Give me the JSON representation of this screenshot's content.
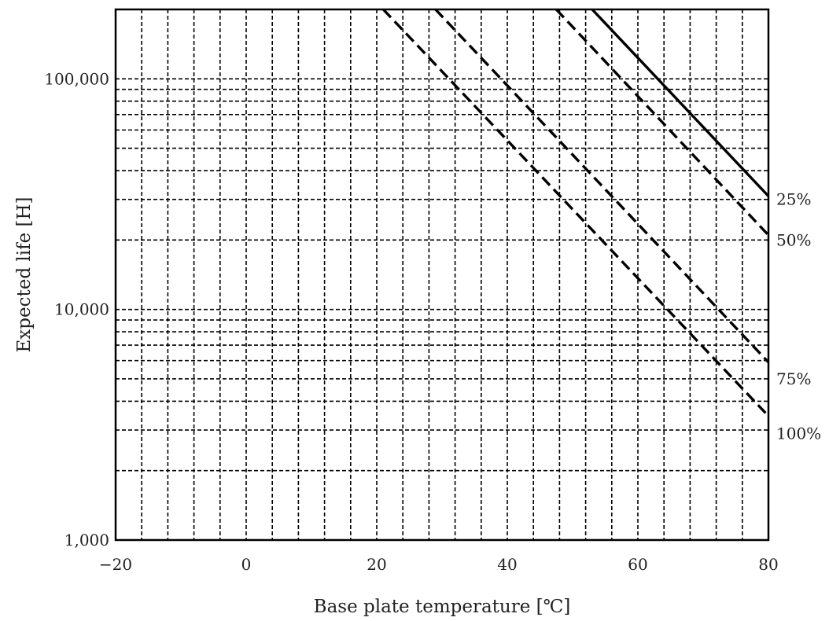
{
  "chart_data": {
    "type": "line",
    "xlabel": "Base plate temperature [℃]",
    "ylabel": "Expected life  [H]",
    "xlim": [
      -20,
      80
    ],
    "ylim": [
      1000,
      200000
    ],
    "y_scale": "log",
    "grid": true,
    "x_ticks": [
      -20,
      0,
      20,
      40,
      60,
      80
    ],
    "x_tick_labels": [
      "−20",
      "0",
      "20",
      "40",
      "60",
      "80"
    ],
    "x_minor_gridlines": [
      -16,
      -12,
      -8,
      -4,
      4,
      8,
      12,
      16,
      24,
      28,
      32,
      36,
      44,
      48,
      52,
      56,
      64,
      68,
      72,
      76
    ],
    "y_ticks": [
      1000,
      10000,
      100000
    ],
    "y_tick_labels": [
      "1,000",
      "10,000",
      "100,000"
    ],
    "y_minor_gridlines": [
      2000,
      3000,
      4000,
      5000,
      6000,
      7000,
      8000,
      9000,
      20000,
      30000,
      40000,
      50000,
      60000,
      70000,
      80000,
      90000
    ],
    "series": [
      {
        "name": "25%",
        "style": "solid",
        "color": "#000000",
        "x": [
          53,
          80
        ],
        "y": [
          200000,
          31000
        ]
      },
      {
        "name": "50%",
        "style": "dashed",
        "color": "#000000",
        "x": [
          47.5,
          80
        ],
        "y": [
          200000,
          21000
        ]
      },
      {
        "name": "",
        "style": "dashed",
        "color": "#000000",
        "x": [
          29,
          80
        ],
        "y": [
          200000,
          5900
        ]
      },
      {
        "name": "",
        "style": "dashed",
        "color": "#000000",
        "x": [
          21,
          80
        ],
        "y": [
          200000,
          3450
        ]
      }
    ],
    "series_labels": [
      {
        "text": "25%",
        "y": 30000
      },
      {
        "text": "50%",
        "y": 20000
      },
      {
        "text": "75%",
        "y": 5000
      },
      {
        "text": "100%",
        "y": 2900
      }
    ]
  }
}
